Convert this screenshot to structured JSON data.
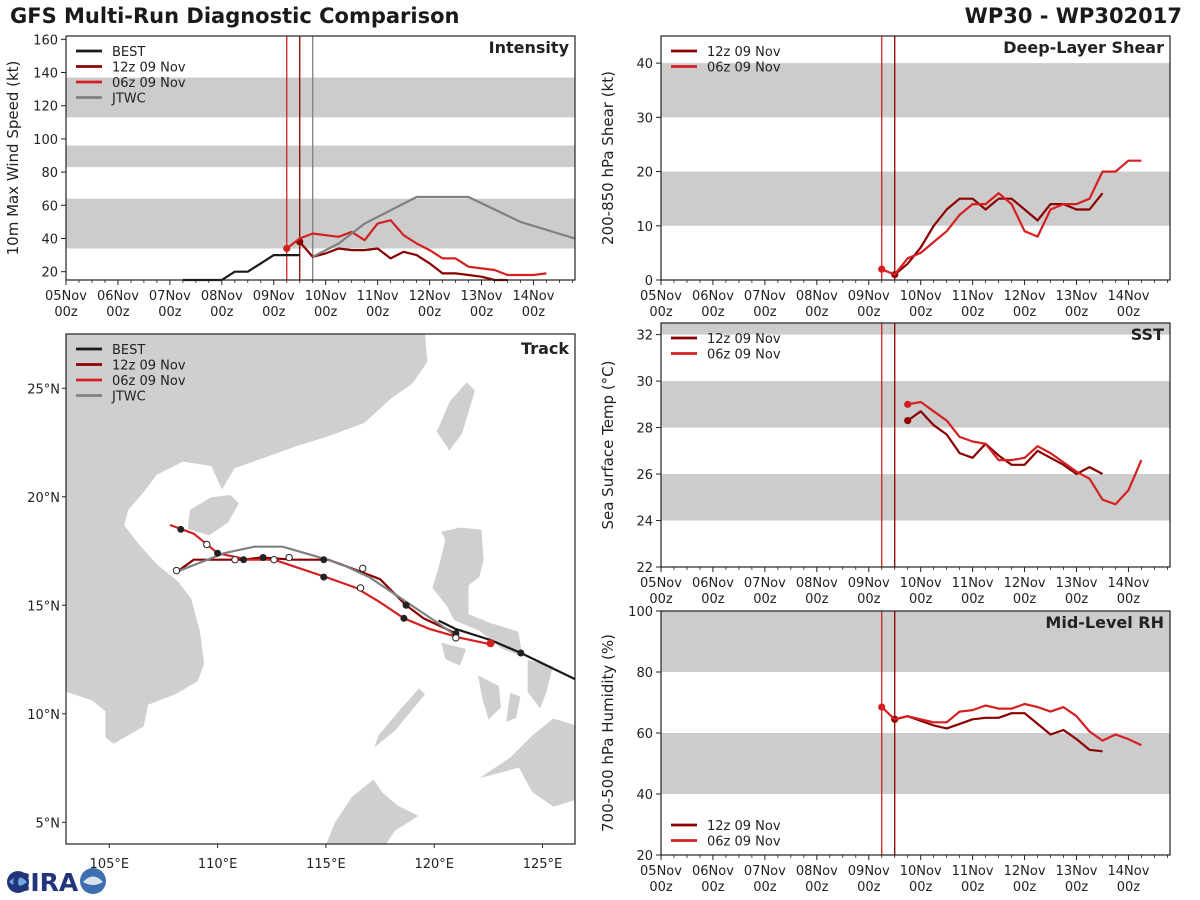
{
  "header": {
    "title": "GFS Multi-Run Diagnostic Comparison",
    "storm_id": "WP30 - WP302017"
  },
  "logo": {
    "text": "CIRA"
  },
  "colors": {
    "best": "#1a1a1a",
    "run12z": "#8b0000",
    "run06z": "#d42020",
    "jtwc": "#808080",
    "band": "#cccccc"
  },
  "chart_data": [
    {
      "panel": "intensity",
      "type": "line",
      "title": "Intensity",
      "ylabel": "10m Max Wind Speed (kt)",
      "xlabel": "",
      "x_units": "days since 05Nov 00z",
      "xlim": [
        0,
        9.8
      ],
      "ylim": [
        15,
        162
      ],
      "yticks": [
        20,
        40,
        60,
        80,
        100,
        120,
        140,
        160
      ],
      "xticks": [
        0,
        1,
        2,
        3,
        4,
        5,
        6,
        7,
        8,
        9
      ],
      "xtick_labels": [
        [
          "05Nov",
          "00z"
        ],
        [
          "06Nov",
          "00z"
        ],
        [
          "07Nov",
          "00z"
        ],
        [
          "08Nov",
          "00z"
        ],
        [
          "09Nov",
          "00z"
        ],
        [
          "10Nov",
          "00z"
        ],
        [
          "11Nov",
          "00z"
        ],
        [
          "12Nov",
          "00z"
        ],
        [
          "13Nov",
          "00z"
        ],
        [
          "14Nov",
          "00z"
        ]
      ],
      "bands": [
        [
          34,
          64
        ],
        [
          83,
          96
        ],
        [
          113,
          137
        ]
      ],
      "vlines": [
        {
          "x": 4.25,
          "series": "06z 09 Nov"
        },
        {
          "x": 4.5,
          "series": "12z 09 Nov"
        },
        {
          "x": 4.75,
          "series": "JTWC"
        }
      ],
      "legend": [
        "BEST",
        "12z 09 Nov",
        "06z 09 Nov",
        "JTWC"
      ],
      "legend_position": "top-left",
      "series": [
        {
          "name": "BEST",
          "x": [
            2.25,
            2.5,
            2.75,
            3.0,
            3.25,
            3.5,
            3.75,
            4.0,
            4.25,
            4.5
          ],
          "y": [
            15,
            15,
            15,
            15,
            20,
            20,
            25,
            30,
            30,
            30
          ]
        },
        {
          "name": "12z 09 Nov",
          "x": [
            4.5,
            4.75,
            5.0,
            5.25,
            5.5,
            5.75,
            6.0,
            6.25,
            6.5,
            6.75,
            7.0,
            7.25,
            7.5,
            7.75,
            8.0,
            8.25,
            8.5
          ],
          "y": [
            38,
            29,
            31,
            34,
            33,
            33,
            34,
            28,
            32,
            30,
            25,
            19,
            19,
            18,
            17,
            15,
            15
          ]
        },
        {
          "name": "06z 09 Nov",
          "x": [
            4.25,
            4.5,
            4.75,
            5.0,
            5.25,
            5.5,
            5.75,
            6.0,
            6.25,
            6.5,
            6.75,
            7.0,
            7.25,
            7.5,
            7.75,
            8.0,
            8.25,
            8.5,
            8.75,
            9.0,
            9.25
          ],
          "y": [
            34,
            40,
            43,
            42,
            41,
            44,
            39,
            49,
            51,
            42,
            37,
            33,
            28,
            28,
            23,
            22,
            21,
            18,
            18,
            18,
            19
          ]
        },
        {
          "name": "JTWC",
          "x": [
            4.75,
            5.25,
            5.75,
            6.75,
            7.75,
            8.75,
            9.8
          ],
          "y": [
            29,
            37,
            49,
            65,
            65,
            50,
            40
          ]
        }
      ]
    },
    {
      "panel": "shear",
      "type": "line",
      "title": "Deep-Layer Shear",
      "ylabel": "200-850 hPa Shear (kt)",
      "x_units": "days since 05Nov 00z",
      "xlim": [
        0,
        9.8
      ],
      "ylim": [
        0,
        45
      ],
      "yticks": [
        0,
        10,
        20,
        30,
        40
      ],
      "xticks": [
        0,
        1,
        2,
        3,
        4,
        5,
        6,
        7,
        8,
        9
      ],
      "bands": [
        [
          10,
          20
        ],
        [
          30,
          40
        ]
      ],
      "vlines": [
        {
          "x": 4.25,
          "series": "06z 09 Nov"
        },
        {
          "x": 4.5,
          "series": "12z 09 Nov"
        }
      ],
      "legend": [
        "12z 09 Nov",
        "06z 09 Nov"
      ],
      "legend_position": "top-left",
      "series": [
        {
          "name": "12z 09 Nov",
          "x": [
            4.5,
            4.75,
            5.0,
            5.25,
            5.5,
            5.75,
            6.0,
            6.25,
            6.5,
            6.75,
            7.0,
            7.25,
            7.5,
            7.75,
            8.0,
            8.25,
            8.5
          ],
          "y": [
            1,
            3,
            6,
            10,
            13,
            15,
            15,
            13,
            15,
            15,
            13,
            11,
            14,
            14,
            13,
            13,
            16
          ]
        },
        {
          "name": "06z 09 Nov",
          "x": [
            4.25,
            4.5,
            4.75,
            5.0,
            5.25,
            5.5,
            5.75,
            6.0,
            6.25,
            6.5,
            6.75,
            7.0,
            7.25,
            7.5,
            7.75,
            8.0,
            8.25,
            8.5,
            8.75,
            9.0,
            9.25
          ],
          "y": [
            2,
            1,
            4,
            5,
            7,
            9,
            12,
            14,
            14,
            16,
            14,
            9,
            8,
            13,
            14,
            14,
            15,
            20,
            20,
            22,
            22
          ]
        }
      ]
    },
    {
      "panel": "sst",
      "type": "line",
      "title": "SST",
      "ylabel": "Sea Surface Temp (°C)",
      "x_units": "days since 05Nov 00z",
      "xlim": [
        0,
        9.8
      ],
      "ylim": [
        22,
        32.5
      ],
      "yticks": [
        22,
        24,
        26,
        28,
        30,
        32
      ],
      "xticks": [
        0,
        1,
        2,
        3,
        4,
        5,
        6,
        7,
        8,
        9
      ],
      "bands": [
        [
          24,
          26
        ],
        [
          28,
          30
        ],
        [
          32,
          32.5
        ]
      ],
      "vlines": [
        {
          "x": 4.25,
          "series": "06z 09 Nov"
        },
        {
          "x": 4.5,
          "series": "12z 09 Nov"
        }
      ],
      "legend": [
        "12z 09 Nov",
        "06z 09 Nov"
      ],
      "legend_position": "top-left",
      "series": [
        {
          "name": "12z 09 Nov",
          "x": [
            4.75,
            5.0,
            5.25,
            5.5,
            5.75,
            6.0,
            6.25,
            6.5,
            6.75,
            7.0,
            7.25,
            7.5,
            7.75,
            8.0,
            8.25,
            8.5
          ],
          "y": [
            28.3,
            28.7,
            28.1,
            27.7,
            26.9,
            26.7,
            27.3,
            26.8,
            26.4,
            26.4,
            27.0,
            26.7,
            26.4,
            26.0,
            26.3,
            26.0
          ]
        },
        {
          "name": "06z 09 Nov",
          "x": [
            4.75,
            5.0,
            5.25,
            5.5,
            5.75,
            6.0,
            6.25,
            6.5,
            6.75,
            7.0,
            7.25,
            7.5,
            7.75,
            8.0,
            8.25,
            8.5,
            8.75,
            9.0,
            9.25
          ],
          "y": [
            29.0,
            29.1,
            28.7,
            28.3,
            27.6,
            27.4,
            27.3,
            26.6,
            26.6,
            26.7,
            27.2,
            26.9,
            26.5,
            26.1,
            25.8,
            24.9,
            24.7,
            25.3,
            26.6
          ]
        }
      ]
    },
    {
      "panel": "rh",
      "type": "line",
      "title": "Mid-Level RH",
      "ylabel": "700-500 hPa Humidity (%)",
      "x_units": "days since 05Nov 00z",
      "xlim": [
        0,
        9.8
      ],
      "ylim": [
        20,
        100
      ],
      "yticks": [
        20,
        40,
        60,
        80,
        100
      ],
      "xticks": [
        0,
        1,
        2,
        3,
        4,
        5,
        6,
        7,
        8,
        9
      ],
      "xtick_labels": [
        [
          "05Nov",
          "00z"
        ],
        [
          "06Nov",
          "00z"
        ],
        [
          "07Nov",
          "00z"
        ],
        [
          "08Nov",
          "00z"
        ],
        [
          "09Nov",
          "00z"
        ],
        [
          "10Nov",
          "00z"
        ],
        [
          "11Nov",
          "00z"
        ],
        [
          "12Nov",
          "00z"
        ],
        [
          "13Nov",
          "00z"
        ],
        [
          "14Nov",
          "00z"
        ]
      ],
      "bands": [
        [
          40,
          60
        ],
        [
          80,
          100
        ]
      ],
      "vlines": [
        {
          "x": 4.25,
          "series": "06z 09 Nov"
        },
        {
          "x": 4.5,
          "series": "12z 09 Nov"
        }
      ],
      "legend": [
        "12z 09 Nov",
        "06z 09 Nov"
      ],
      "legend_position": "bottom-left",
      "series": [
        {
          "name": "12z 09 Nov",
          "x": [
            4.5,
            4.75,
            5.0,
            5.25,
            5.5,
            5.75,
            6.0,
            6.25,
            6.5,
            6.75,
            7.0,
            7.25,
            7.5,
            7.75,
            8.0,
            8.25,
            8.5
          ],
          "y": [
            64.5,
            65.5,
            64,
            62.5,
            61.5,
            63,
            64.5,
            65,
            65,
            66.5,
            66.5,
            63,
            59.5,
            61,
            58,
            54.5,
            54
          ]
        },
        {
          "name": "06z 09 Nov",
          "x": [
            4.25,
            4.5,
            4.75,
            5.0,
            5.25,
            5.5,
            5.75,
            6.0,
            6.25,
            6.5,
            6.75,
            7.0,
            7.25,
            7.5,
            7.75,
            8.0,
            8.25,
            8.5,
            8.75,
            9.0,
            9.25
          ],
          "y": [
            68.5,
            64.5,
            65.5,
            64.5,
            63.5,
            63.5,
            67,
            67.5,
            69,
            68,
            68,
            69.5,
            68.5,
            67,
            68.5,
            65.5,
            60.5,
            57.5,
            59.5,
            58,
            56
          ]
        }
      ]
    },
    {
      "panel": "track",
      "type": "line",
      "title": "Track",
      "xlabel": "longitude",
      "ylabel": "latitude",
      "xlim": [
        103,
        126.5
      ],
      "ylim": [
        4,
        27.5
      ],
      "xtick_labels": [
        "105°E",
        "110°E",
        "115°E",
        "120°E",
        "125°E"
      ],
      "xticks": [
        105,
        110,
        115,
        120,
        125
      ],
      "ytick_labels": [
        "5°N",
        "10°N",
        "15°N",
        "20°N",
        "25°N"
      ],
      "yticks": [
        5,
        10,
        15,
        20,
        25
      ],
      "legend": [
        "BEST",
        "12z 09 Nov",
        "06z 09 Nov",
        "JTWC"
      ],
      "legend_position": "top-left",
      "series": [
        {
          "name": "BEST",
          "lon": [
            126.5,
            124.0,
            122.6,
            121.0,
            120.2
          ],
          "lat": [
            11.6,
            12.8,
            13.4,
            13.9,
            14.3
          ]
        },
        {
          "name": "12z 09 Nov",
          "lon": [
            121.0,
            119.5,
            118.7,
            117.5,
            116.2,
            115.1,
            113.5,
            112.0,
            111.2,
            110.0,
            108.9,
            108.2
          ],
          "lat": [
            13.7,
            14.4,
            15.0,
            16.2,
            16.7,
            17.1,
            17.1,
            17.2,
            17.1,
            17.1,
            17.1,
            16.6
          ]
        },
        {
          "name": "06z 09 Nov",
          "lon": [
            122.6,
            121.2,
            119.8,
            118.6,
            117.4,
            116.4,
            115.0,
            113.8,
            112.6,
            111.4,
            110.0,
            108.9,
            107.8
          ],
          "lat": [
            13.2,
            13.5,
            13.9,
            14.4,
            15.2,
            15.8,
            16.3,
            16.7,
            17.1,
            17.1,
            17.4,
            18.3,
            18.7
          ]
        },
        {
          "name": "JTWC",
          "lon": [
            121.0,
            120.0,
            118.5,
            117.0,
            115.7,
            114.4,
            113.0,
            111.7,
            110.3,
            108.0
          ],
          "lat": [
            13.6,
            14.3,
            15.3,
            16.3,
            16.9,
            17.3,
            17.7,
            17.7,
            17.4,
            16.5
          ]
        }
      ],
      "markers_filled": [
        [
          124.0,
          12.8
        ],
        [
          121.0,
          13.7
        ],
        [
          118.7,
          15.0
        ],
        [
          114.9,
          17.1
        ],
        [
          112.1,
          17.2
        ],
        [
          110.0,
          17.4
        ],
        [
          108.3,
          18.5
        ],
        [
          118.6,
          14.4
        ],
        [
          114.9,
          16.3
        ],
        [
          111.2,
          17.1
        ]
      ],
      "markers_open": [
        [
          121.0,
          13.5
        ],
        [
          116.6,
          15.8
        ],
        [
          113.3,
          17.2
        ],
        [
          112.6,
          17.1
        ],
        [
          110.8,
          17.1
        ],
        [
          109.5,
          17.8
        ],
        [
          108.1,
          16.6
        ],
        [
          116.7,
          16.7
        ]
      ]
    }
  ]
}
